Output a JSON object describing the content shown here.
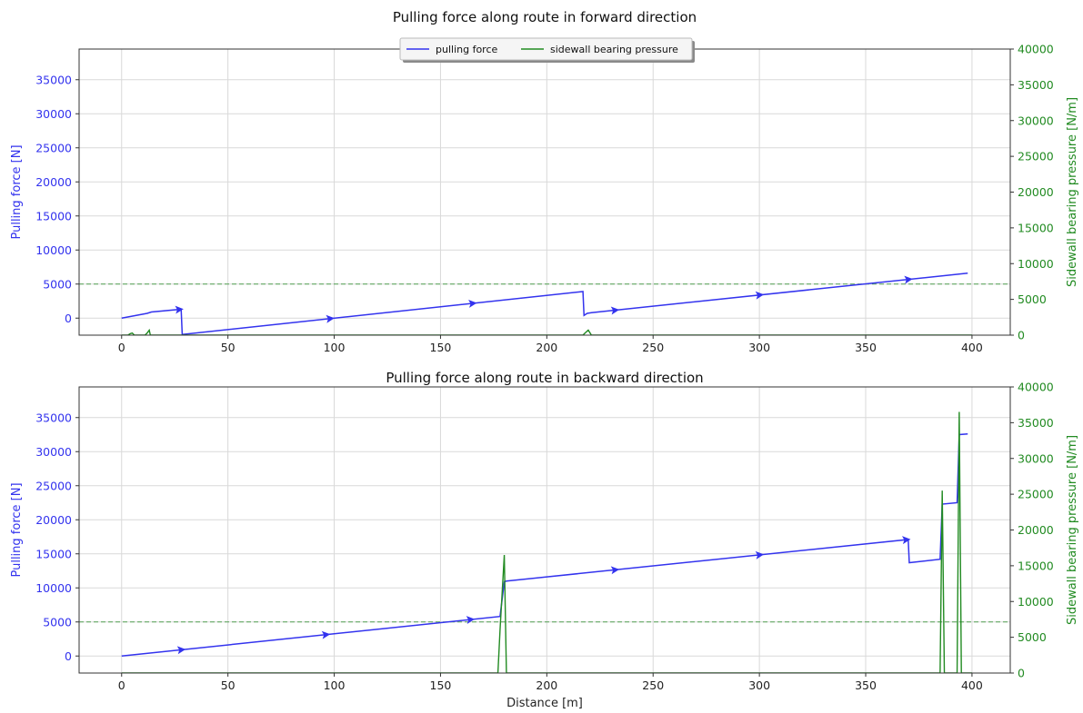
{
  "colors": {
    "force": "#3333ee",
    "pressure": "#228b22",
    "left_axis_text": "#3333ee",
    "right_axis_text": "#228b22",
    "grid": "#d9d9d9"
  },
  "chart_data": [
    {
      "type": "line",
      "title": "Pulling force along route in forward direction",
      "xlabel": "",
      "ylabel": "Pulling force [N]",
      "y2label": "Sidewall bearing pressure [N/m]",
      "xlim": [
        -20,
        418
      ],
      "ylim": [
        -2500,
        39500
      ],
      "y2lim": [
        0,
        40000
      ],
      "x_ticks": [
        "0",
        "50",
        "100",
        "150",
        "200",
        "250",
        "300",
        "350",
        "400"
      ],
      "y_ticks": [
        "0",
        "5000",
        "10000",
        "15000",
        "20000",
        "25000",
        "30000",
        "35000"
      ],
      "y2_ticks": [
        "0",
        "5000",
        "10000",
        "15000",
        "20000",
        "25000",
        "30000",
        "35000",
        "40000"
      ],
      "grid": true,
      "legend": {
        "placement": "top-center",
        "entries": [
          "pulling force",
          "sidewall bearing pressure"
        ]
      },
      "limit_line": {
        "y": 5000,
        "style": "dashed"
      },
      "series": [
        {
          "name": "pulling force",
          "axis": "left",
          "x": [
            0,
            12,
            14,
            28,
            28.5,
            217,
            217.5,
            219,
            221,
            398
          ],
          "y": [
            0,
            700,
            900,
            1300,
            -2400,
            3900,
            400,
            700,
            800,
            6600
          ],
          "arrows_at": [
            27,
            98,
            165,
            232,
            300,
            370
          ]
        },
        {
          "name": "sidewall bearing pressure",
          "axis": "right",
          "x": [
            0,
            3,
            4,
            5,
            6,
            11,
            12,
            12.5,
            13,
            13.5,
            14,
            217,
            218,
            219.5,
            221,
            400
          ],
          "y": [
            0,
            0,
            200,
            300,
            0,
            0,
            300,
            500,
            700,
            0,
            0,
            0,
            300,
            700,
            0,
            0
          ]
        }
      ]
    },
    {
      "type": "line",
      "title": "Pulling force along route in backward direction",
      "xlabel": "Distance [m]",
      "ylabel": "Pulling force [N]",
      "y2label": "Sidewall bearing pressure [N/m]",
      "xlim": [
        -20,
        418
      ],
      "ylim": [
        -2500,
        39500
      ],
      "y2lim": [
        0,
        40000
      ],
      "x_ticks": [
        "0",
        "50",
        "100",
        "150",
        "200",
        "250",
        "300",
        "350",
        "400"
      ],
      "y_ticks": [
        "0",
        "5000",
        "10000",
        "15000",
        "20000",
        "25000",
        "30000",
        "35000"
      ],
      "y2_ticks": [
        "0",
        "5000",
        "10000",
        "15000",
        "20000",
        "25000",
        "30000",
        "35000",
        "40000"
      ],
      "grid": true,
      "limit_line": {
        "y": 5000,
        "style": "dashed"
      },
      "series": [
        {
          "name": "pulling force",
          "axis": "left",
          "x": [
            0,
            178,
            180,
            181,
            370,
            370.5,
            385,
            386,
            393,
            394,
            398
          ],
          "y": [
            0,
            5800,
            10900,
            11000,
            17100,
            13700,
            14200,
            22300,
            22500,
            32500,
            32600
          ],
          "arrows_at": [
            28,
            96,
            164,
            232,
            300,
            369
          ]
        },
        {
          "name": "sidewall bearing pressure",
          "axis": "right",
          "x": [
            0,
            177,
            178,
            180,
            181,
            385,
            386,
            387,
            393,
            394,
            395,
            400
          ],
          "y": [
            0,
            0,
            6000,
            16500,
            0,
            0,
            25500,
            0,
            0,
            36500,
            0,
            0
          ]
        }
      ]
    }
  ]
}
